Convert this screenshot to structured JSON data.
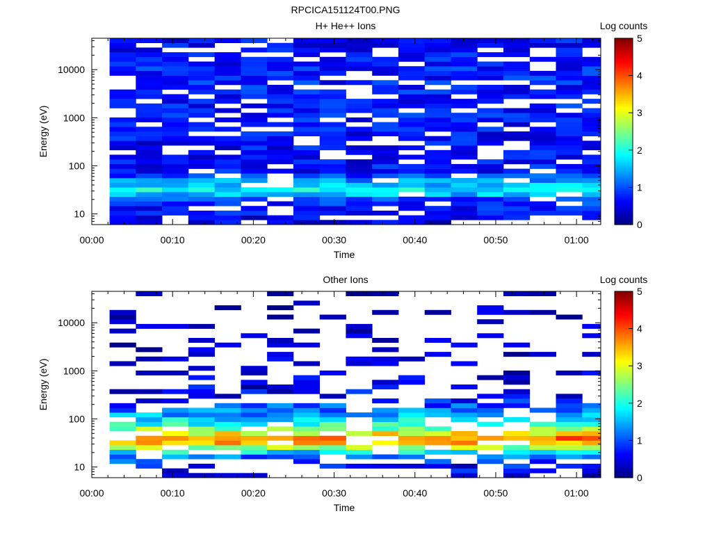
{
  "figure_title": "RPCICA151124T00.PNG",
  "colors": {
    "colormap": [
      "#000080",
      "#0000ff",
      "#0080ff",
      "#00ffff",
      "#80ff80",
      "#ffff00",
      "#ff8000",
      "#ff0000",
      "#800000"
    ]
  },
  "chart_data": [
    {
      "type": "heatmap",
      "title": "H+ He++ Ions",
      "xlabel": "Time",
      "ylabel": "Energy (eV)",
      "yscale": "log",
      "xlim": [
        "00:00",
        "01:03"
      ],
      "ylim": [
        6,
        45000
      ],
      "x_ticks": [
        "00:00",
        "00:10",
        "00:20",
        "00:30",
        "00:40",
        "00:50",
        "01:00"
      ],
      "y_ticks": [
        "10",
        "100",
        "1000",
        "10000"
      ],
      "colorbar": {
        "label": "Log counts",
        "range": [
          0,
          5
        ],
        "ticks": [
          "0",
          "1",
          "2",
          "3",
          "4",
          "5"
        ]
      },
      "time_start_min": 2.2,
      "time_bin_min": 3.25,
      "n_time_bins": 19,
      "energy_min_eV": 6,
      "energy_max_eV": 45000,
      "n_energy_bins": 40,
      "profile": [
        [
          6,
          0.45
        ],
        [
          10,
          0.6
        ],
        [
          20,
          0.9
        ],
        [
          30,
          1.9
        ],
        [
          45,
          1.5
        ],
        [
          70,
          0.7
        ],
        [
          150,
          0.6
        ],
        [
          1000,
          0.7
        ],
        [
          10000,
          0.75
        ],
        [
          45000,
          0.6
        ]
      ],
      "gap_fraction": 0.18,
      "noise": 0.35
    },
    {
      "type": "heatmap",
      "title": "Other Ions",
      "xlabel": "Time",
      "ylabel": "Energy (eV)",
      "yscale": "log",
      "xlim": [
        "00:00",
        "01:03"
      ],
      "ylim": [
        6,
        45000
      ],
      "x_ticks": [
        "00:00",
        "00:10",
        "00:20",
        "00:30",
        "00:40",
        "00:50",
        "01:00"
      ],
      "y_ticks": [
        "10",
        "100",
        "1000",
        "10000"
      ],
      "colorbar": {
        "label": "Log counts",
        "range": [
          0,
          5
        ],
        "ticks": [
          "0",
          "1",
          "2",
          "3",
          "4",
          "5"
        ]
      },
      "time_start_min": 2.2,
      "time_bin_min": 3.25,
      "n_time_bins": 19,
      "energy_min_eV": 6,
      "energy_max_eV": 45000,
      "n_energy_bins": 40,
      "profile": [
        [
          6,
          0.3
        ],
        [
          10,
          0.6
        ],
        [
          16,
          1.1
        ],
        [
          22,
          2.0
        ],
        [
          30,
          3.4
        ],
        [
          40,
          3.8
        ],
        [
          55,
          2.8
        ],
        [
          80,
          2.0
        ],
        [
          120,
          1.4
        ],
        [
          250,
          0.7
        ],
        [
          600,
          0.35
        ],
        [
          45000,
          0.1
        ]
      ],
      "gap_fraction": 0.55,
      "noise": 0.45
    }
  ]
}
